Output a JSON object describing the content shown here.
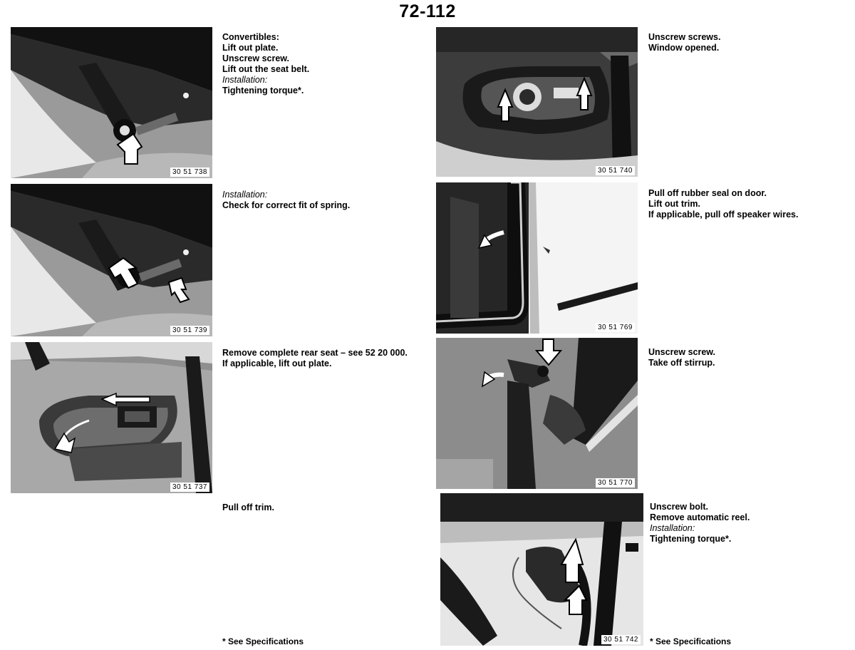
{
  "page_number": "72-112",
  "steps": [
    {
      "photo_id": "30 51 738",
      "lines": [
        {
          "text": "Convertibles:",
          "italic": false
        },
        {
          "text": "Lift out plate.",
          "italic": false
        },
        {
          "text": "Unscrew screw.",
          "italic": false
        },
        {
          "text": "Lift out the seat belt.",
          "italic": false
        },
        {
          "text": "Installation:",
          "italic": true
        },
        {
          "text": "Tightening torque*.",
          "italic": false
        }
      ]
    },
    {
      "photo_id": "30 51 739",
      "lines": [
        {
          "text": "Installation:",
          "italic": true
        },
        {
          "text": "Check for correct fit of spring.",
          "italic": false
        }
      ]
    },
    {
      "photo_id": "30 51 737",
      "lines": [
        {
          "text": "Remove complete rear seat – see 52 20 000.",
          "italic": false
        },
        {
          "text": "If applicable, lift out plate.",
          "italic": false
        }
      ]
    },
    {
      "photo_id": "",
      "lines": [
        {
          "text": "Pull off trim.",
          "italic": false
        }
      ]
    },
    {
      "photo_id": "30 51 740",
      "lines": [
        {
          "text": "Unscrew screws.",
          "italic": false
        },
        {
          "text": "Window opened.",
          "italic": false
        }
      ]
    },
    {
      "photo_id": "30 51 769",
      "lines": [
        {
          "text": "Pull off rubber seal on door.",
          "italic": false
        },
        {
          "text": "Lift out trim.",
          "italic": false
        },
        {
          "text": "If applicable, pull off speaker wires.",
          "italic": false
        }
      ]
    },
    {
      "photo_id": "30 51 770",
      "lines": [
        {
          "text": "Unscrew screw.",
          "italic": false
        },
        {
          "text": "Take off stirrup.",
          "italic": false
        }
      ]
    },
    {
      "photo_id": "30 51 742",
      "lines": [
        {
          "text": "Unscrew bolt.",
          "italic": false
        },
        {
          "text": "Remove automatic reel.",
          "italic": false
        },
        {
          "text": "Installation:",
          "italic": true
        },
        {
          "text": "Tightening torque*.",
          "italic": false
        }
      ]
    }
  ],
  "footnotes": {
    "left": "* See Specifications",
    "right": "* See Specifications"
  }
}
